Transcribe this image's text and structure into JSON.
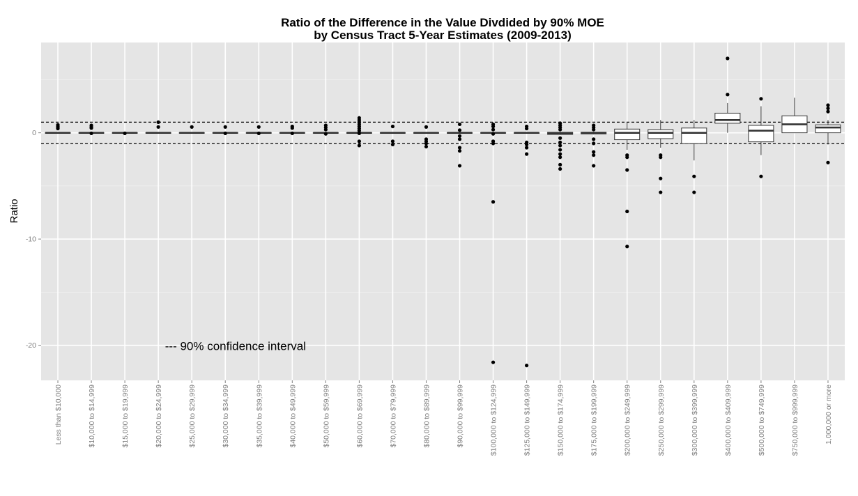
{
  "colors": {
    "panel_background": "#e5e5e5",
    "grid_major": "#ffffff",
    "grid_minor": "#f2f2f2",
    "box_fill": "#ffffff",
    "box_line": "#333333",
    "outlier": "#000000",
    "reference_line": "#000000",
    "tick_text": "#7f7f7f"
  },
  "chart_data": {
    "type": "box",
    "title": "Ratio of the Difference in the Value Divdided by 90% MOE",
    "subtitle": "by Census Tract 5-Year Estimates (2009-2013)",
    "xlabel": "",
    "ylabel": "Ratio",
    "ylim": [
      -23.3,
      8.5
    ],
    "y_ticks": [
      0,
      -10,
      -20
    ],
    "y_tick_labels": [
      "0",
      "-10",
      "-20"
    ],
    "grid": true,
    "reference_lines": [
      1,
      -1
    ],
    "annotation": "--- 90% confidence interval",
    "annotation_position": {
      "x_category_index": 3.7,
      "y": -20.05
    },
    "categories": [
      "Less than $10,000",
      "$10,000 to $14,999",
      "$15,000 to $19,999",
      "$20,000 to $24,999",
      "$25,000 to $29,999",
      "$30,000 to $34,999",
      "$35,000 to $39,999",
      "$40,000 to $49,999",
      "$50,000 to $59,999",
      "$60,000 to $69,999",
      "$70,000 to $79,999",
      "$80,000 to $89,999",
      "$90,000 to $99,999",
      "$100,000 to $124,999",
      "$125,000 to $149,999",
      "$150,000 to $174,999",
      "$175,000 to $199,999",
      "$200,000 to $249,999",
      "$250,000 to $299,999",
      "$300,000 to $399,999",
      "$400,000 to $409,999",
      "$500,000 to $749,999",
      "$750,000 to $999,999",
      "1,000,000 or more"
    ],
    "boxes": [
      {
        "q1": 0,
        "median": 0,
        "q3": 0,
        "lower": 0,
        "upper": 0,
        "outliers": [
          0.4,
          0.5,
          0.6,
          0.75
        ]
      },
      {
        "q1": 0,
        "median": 0,
        "q3": 0,
        "lower": 0,
        "upper": 0,
        "outliers": [
          0.45,
          0.55,
          0.7,
          -0.05
        ]
      },
      {
        "q1": 0,
        "median": 0,
        "q3": 0,
        "lower": 0,
        "upper": 0,
        "outliers": [
          -0.05
        ]
      },
      {
        "q1": 0,
        "median": 0,
        "q3": 0,
        "lower": 0,
        "upper": 0,
        "outliers": [
          0.55,
          1.0
        ]
      },
      {
        "q1": 0,
        "median": 0,
        "q3": 0,
        "lower": 0,
        "upper": 0,
        "outliers": [
          0.55
        ]
      },
      {
        "q1": 0,
        "median": 0,
        "q3": 0,
        "lower": 0,
        "upper": 0,
        "outliers": [
          0.55,
          -0.05
        ]
      },
      {
        "q1": 0,
        "median": 0,
        "q3": 0,
        "lower": 0,
        "upper": 0,
        "outliers": [
          0.55,
          -0.05
        ]
      },
      {
        "q1": 0,
        "median": 0,
        "q3": 0,
        "lower": 0,
        "upper": 0,
        "outliers": [
          0.45,
          0.6,
          -0.05
        ]
      },
      {
        "q1": 0,
        "median": 0,
        "q3": 0,
        "lower": 0,
        "upper": 0,
        "outliers": [
          0.3,
          0.5,
          0.7,
          -0.1
        ]
      },
      {
        "q1": 0,
        "median": 0,
        "q3": 0,
        "lower": 0,
        "upper": 0,
        "outliers": [
          0.2,
          0.4,
          0.6,
          0.8,
          1.0,
          1.2,
          1.4,
          -0.05,
          -0.8,
          -1.2
        ]
      },
      {
        "q1": 0,
        "median": 0,
        "q3": 0,
        "lower": 0,
        "upper": 0,
        "outliers": [
          0.6,
          -0.8,
          -1.1
        ]
      },
      {
        "q1": 0,
        "median": 0,
        "q3": 0,
        "lower": 0,
        "upper": 0,
        "outliers": [
          0.55,
          -0.6,
          -0.8,
          -1.0,
          -1.3
        ]
      },
      {
        "q1": 0,
        "median": 0,
        "q3": 0,
        "lower": 0,
        "upper": 0,
        "outliers": [
          0.8,
          0.25,
          -0.3,
          -0.6,
          -1.4,
          -1.7,
          -3.1
        ]
      },
      {
        "q1": 0,
        "median": 0,
        "q3": 0,
        "lower": 0,
        "upper": 0,
        "outliers": [
          0.8,
          0.6,
          0.3,
          -0.1,
          -0.8,
          -1.0,
          -6.5,
          -21.6
        ]
      },
      {
        "q1": -0.05,
        "median": 0,
        "q3": 0,
        "lower": -0.05,
        "upper": 0.05,
        "outliers": [
          0.6,
          0.4,
          -0.9,
          -1.1,
          -1.4,
          -2.0,
          -21.9
        ]
      },
      {
        "q1": -0.15,
        "median": -0.05,
        "q3": 0.05,
        "lower": -0.2,
        "upper": 0.1,
        "outliers": [
          0.9,
          0.7,
          0.5,
          0.3,
          -0.5,
          -0.9,
          -1.2,
          -1.6,
          -2.0,
          -2.3,
          -3.0,
          -3.4
        ]
      },
      {
        "q1": -0.1,
        "median": 0,
        "q3": 0.05,
        "lower": -0.15,
        "upper": 0.1,
        "outliers": [
          0.7,
          0.5,
          0.3,
          -0.6,
          -1.0,
          -1.8,
          -2.1,
          -3.1
        ]
      },
      {
        "q1": -0.65,
        "median": 0,
        "q3": 0.35,
        "lower": -1.6,
        "upper": 1.0,
        "outliers": [
          -2.1,
          -2.3,
          -3.5,
          -7.4,
          -10.7
        ]
      },
      {
        "q1": -0.55,
        "median": 0,
        "q3": 0.3,
        "lower": -1.4,
        "upper": 1.2,
        "outliers": [
          -2.1,
          -2.3,
          -4.3,
          -5.6
        ]
      },
      {
        "q1": -1.0,
        "median": 0,
        "q3": 0.45,
        "lower": -2.6,
        "upper": 1.2,
        "outliers": [
          -4.1,
          -5.6
        ]
      },
      {
        "q1": 0.9,
        "median": 1.2,
        "q3": 1.85,
        "lower": 0,
        "upper": 2.8,
        "outliers": [
          3.6,
          7.0
        ]
      },
      {
        "q1": -0.85,
        "median": 0.2,
        "q3": 0.7,
        "lower": -2.1,
        "upper": 2.5,
        "outliers": [
          3.2,
          -4.1
        ]
      },
      {
        "q1": 0,
        "median": 0.8,
        "q3": 1.6,
        "lower": 0,
        "upper": 3.3,
        "outliers": []
      },
      {
        "q1": 0,
        "median": 0.5,
        "q3": 0.75,
        "lower": -1.1,
        "upper": 1.2,
        "outliers": [
          2.0,
          2.3,
          2.6,
          -2.8
        ]
      }
    ]
  }
}
